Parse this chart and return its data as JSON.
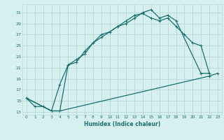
{
  "xlabel": "Humidex (Indice chaleur)",
  "bg_color": "#d6f0f0",
  "grid_color": "#b8d8d8",
  "line_color": "#1a6e6e",
  "xlim": [
    -0.5,
    23.5
  ],
  "ylim": [
    12.5,
    32.5
  ],
  "yticks": [
    13,
    15,
    17,
    19,
    21,
    23,
    25,
    27,
    29,
    31
  ],
  "xticks": [
    0,
    1,
    2,
    3,
    4,
    5,
    6,
    7,
    8,
    9,
    10,
    11,
    12,
    13,
    14,
    15,
    16,
    17,
    18,
    19,
    20,
    21,
    22,
    23
  ],
  "line1_x": [
    0,
    1,
    2,
    3,
    4,
    5,
    6,
    7,
    8,
    9,
    10,
    11,
    12,
    13,
    14,
    15,
    16,
    17,
    18,
    21,
    22
  ],
  "line1_y": [
    15.5,
    14,
    14,
    13.2,
    13.2,
    21.5,
    22.5,
    23.5,
    25.5,
    26.5,
    27.5,
    28.5,
    29,
    30,
    31,
    31.5,
    30,
    30.5,
    29.5,
    20,
    20
  ],
  "line2_x": [
    0,
    3,
    4,
    5,
    6,
    7,
    8,
    9,
    10,
    11,
    12,
    13,
    14,
    15,
    16,
    17,
    18,
    19,
    20,
    21,
    22
  ],
  "line2_y": [
    15.5,
    13.2,
    18,
    21.5,
    22,
    24,
    25.5,
    27,
    27.5,
    28.5,
    29.5,
    30.5,
    30.8,
    30,
    29.5,
    30,
    28.5,
    27,
    25.5,
    25,
    20
  ],
  "line3_x": [
    0,
    3,
    4,
    22,
    23
  ],
  "line3_y": [
    15.5,
    13.2,
    13.2,
    19.5,
    20
  ],
  "markersize": 3,
  "linewidth": 0.9
}
